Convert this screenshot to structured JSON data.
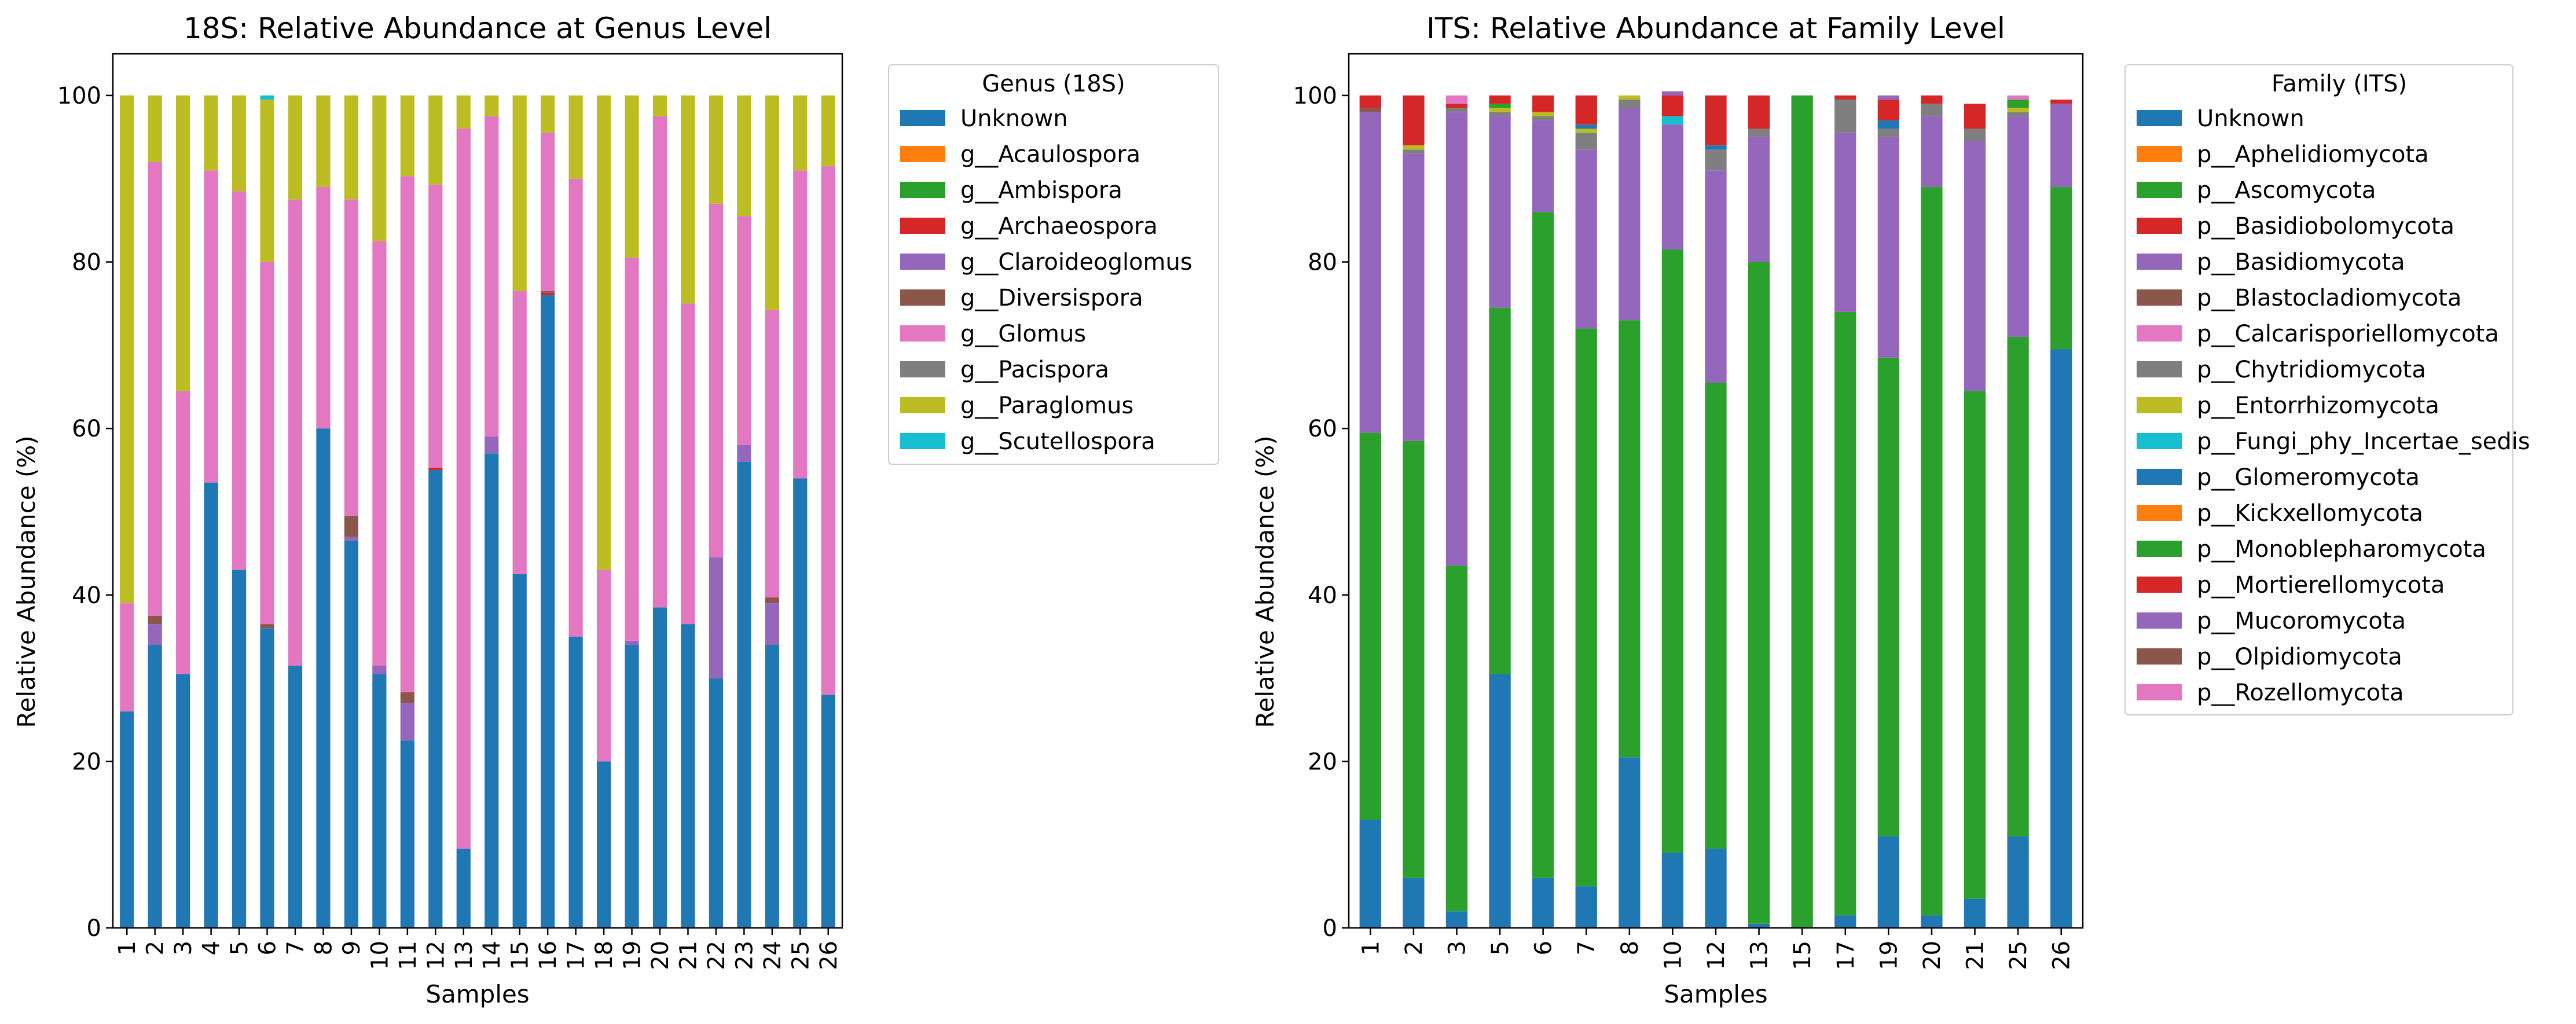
{
  "palette": {
    "Unknown": "#1f77b4",
    "g__Acaulospora": "#ff7f0e",
    "g__Ambispora": "#2ca02c",
    "g__Archaeospora": "#d62728",
    "g__Claroideoglomus": "#9467bd",
    "g__Diversispora": "#8c564b",
    "g__Glomus": "#e377c2",
    "g__Pacispora": "#7f7f7f",
    "g__Paraglomus": "#bcbd22",
    "g__Scutellospora": "#17becf",
    "p__Aphelidiomycota": "#ff7f0e",
    "p__Ascomycota": "#2ca02c",
    "p__Basidiobolomycota": "#d62728",
    "p__Basidiomycota": "#9467bd",
    "p__Blastocladiomycota": "#8c564b",
    "p__Calcarisporiellomycota": "#e377c2",
    "p__Chytridiomycota": "#7f7f7f",
    "p__Entorrhizomycota": "#bcbd22",
    "p__Fungi_phy_Incertae_sedis": "#17becf",
    "p__Glomeromycota": "#1f77b4",
    "p__Kickxellomycota": "#ff7f0e",
    "p__Monoblepharomycota": "#2ca02c",
    "p__Mortierellomycota": "#d62728",
    "p__Mucoromycota": "#9467bd",
    "p__Olpidiomycota": "#8c564b",
    "p__Rozellomycota": "#e377c2"
  },
  "chart_data": [
    {
      "type": "bar",
      "stacked": true,
      "title": "18S: Relative Abundance at Genus Level",
      "xlabel": "Samples",
      "ylabel": "Relative Abundance (%)",
      "ylim": [
        0,
        105
      ],
      "yticks": [
        "0",
        "20",
        "40",
        "60",
        "80",
        "100"
      ],
      "grid": false,
      "legend_title": "Genus (18S)",
      "legend_position": "outside upper right",
      "categories": [
        "1",
        "2",
        "3",
        "4",
        "5",
        "6",
        "7",
        "8",
        "9",
        "10",
        "11",
        "12",
        "13",
        "14",
        "15",
        "16",
        "17",
        "18",
        "19",
        "20",
        "21",
        "22",
        "23",
        "24",
        "25",
        "26"
      ],
      "series": [
        {
          "name": "Unknown",
          "values": [
            26,
            34,
            30.5,
            53.5,
            43,
            36,
            31.5,
            60,
            46.5,
            30.5,
            22.5,
            55,
            9.5,
            57,
            42.5,
            76,
            35,
            20,
            34,
            38.5,
            36.5,
            30,
            56,
            34,
            54,
            28
          ]
        },
        {
          "name": "g__Acaulospora",
          "values": [
            0,
            0,
            0,
            0,
            0,
            0,
            0,
            0,
            0,
            0,
            0,
            0,
            0,
            0,
            0,
            0,
            0,
            0,
            0,
            0,
            0,
            0,
            0,
            0,
            0,
            0
          ]
        },
        {
          "name": "g__Ambispora",
          "values": [
            0,
            0,
            0,
            0,
            0,
            0,
            0,
            0,
            0,
            0,
            0,
            0,
            0,
            0,
            0,
            0,
            0,
            0,
            0,
            0,
            0,
            0,
            0,
            0,
            0,
            0
          ]
        },
        {
          "name": "g__Archaeospora",
          "values": [
            0,
            0,
            0,
            0,
            0,
            0,
            0,
            0,
            0,
            0,
            0,
            0.3,
            0,
            0,
            0,
            0.3,
            0,
            0,
            0,
            0,
            0,
            0,
            0,
            0,
            0,
            0
          ]
        },
        {
          "name": "g__Claroideoglomus",
          "values": [
            0,
            2.5,
            0,
            0,
            0,
            0,
            0,
            0,
            0.5,
            1,
            4.5,
            0,
            0,
            2,
            0,
            0,
            0,
            0,
            0.5,
            0,
            0,
            14.5,
            2,
            5,
            0,
            0
          ]
        },
        {
          "name": "g__Diversispora",
          "values": [
            0,
            1,
            0,
            0,
            0,
            0.5,
            0,
            0,
            2.5,
            0,
            1.3,
            0,
            0,
            0,
            0,
            0.2,
            0,
            0,
            0,
            0,
            0,
            0,
            0,
            0.7,
            0,
            0
          ]
        },
        {
          "name": "g__Glomus",
          "values": [
            13,
            54.5,
            34,
            37.5,
            45.5,
            43.5,
            56,
            29,
            38,
            51,
            62,
            34,
            86.5,
            38.5,
            34,
            19,
            55,
            23,
            46,
            59,
            38.5,
            42.5,
            27.5,
            34.5,
            37,
            63.5
          ]
        },
        {
          "name": "g__Pacispora",
          "values": [
            0,
            0,
            0,
            0,
            0,
            0,
            0,
            0,
            0,
            0,
            0,
            0,
            0,
            0,
            0,
            0,
            0,
            0,
            0,
            0,
            0,
            0,
            0,
            0,
            0,
            0
          ]
        },
        {
          "name": "g__Paraglomus",
          "values": [
            61,
            8,
            35.5,
            9,
            11.5,
            19.5,
            12.5,
            11,
            12.5,
            17.5,
            9.7,
            10.7,
            4,
            2.5,
            23.5,
            4.5,
            10,
            57,
            19.5,
            2.5,
            25,
            13,
            14.5,
            25.8,
            9,
            8.5
          ]
        },
        {
          "name": "g__Scutellospora",
          "values": [
            0,
            0,
            0,
            0,
            0,
            0.5,
            0,
            0,
            0,
            0,
            0,
            0,
            0,
            0,
            0,
            0,
            0,
            0,
            0,
            0,
            0,
            0,
            0,
            0,
            0,
            0
          ]
        }
      ]
    },
    {
      "type": "bar",
      "stacked": true,
      "title": "ITS: Relative Abundance at Family Level",
      "xlabel": "Samples",
      "ylabel": "Relative Abundance (%)",
      "ylim": [
        0,
        105
      ],
      "yticks": [
        "0",
        "20",
        "40",
        "60",
        "80",
        "100"
      ],
      "grid": false,
      "legend_title": "Family (ITS)",
      "legend_position": "outside upper right",
      "categories": [
        "1",
        "2",
        "3",
        "5",
        "6",
        "7",
        "8",
        "10",
        "12",
        "13",
        "15",
        "17",
        "19",
        "20",
        "21",
        "25",
        "26"
      ],
      "series": [
        {
          "name": "Unknown",
          "values": [
            13,
            6,
            2,
            30.5,
            6,
            5,
            20.5,
            9,
            9.5,
            0.5,
            0,
            1.5,
            11,
            1.5,
            3.5,
            11,
            69.5
          ]
        },
        {
          "name": "p__Aphelidiomycota",
          "values": [
            0,
            0,
            0,
            0,
            0,
            0,
            0,
            0,
            0,
            0,
            0,
            0,
            0,
            0,
            0,
            0,
            0
          ]
        },
        {
          "name": "p__Ascomycota",
          "values": [
            46.5,
            52.5,
            41.5,
            44,
            80,
            67,
            52.5,
            72.5,
            56,
            79.5,
            100,
            72.5,
            57.5,
            87.5,
            61,
            60,
            19.5
          ]
        },
        {
          "name": "p__Basidiobolomycota",
          "values": [
            0,
            0,
            0,
            0,
            0,
            0,
            0,
            0,
            0,
            0,
            0,
            0,
            0,
            0,
            0,
            0,
            0
          ]
        },
        {
          "name": "p__Basidiomycota",
          "values": [
            38.5,
            34.5,
            54.5,
            23,
            11,
            21.5,
            25.5,
            15,
            25.5,
            15,
            0,
            21.5,
            26.5,
            8.5,
            30,
            26.5,
            10
          ]
        },
        {
          "name": "p__Blastocladiomycota",
          "values": [
            0.5,
            0,
            0,
            0,
            0,
            0,
            0,
            0,
            0,
            0,
            0,
            0,
            0,
            0,
            0,
            0,
            0
          ]
        },
        {
          "name": "p__Calcarisporiellomycota",
          "values": [
            0,
            0,
            0,
            0,
            0,
            0,
            0,
            0,
            0,
            0,
            0,
            0,
            0,
            0,
            0,
            0,
            0
          ]
        },
        {
          "name": "p__Chytridiomycota",
          "values": [
            0,
            0.5,
            0.5,
            0.5,
            0.5,
            2,
            1,
            0,
            2.5,
            1,
            0,
            4,
            1,
            1.5,
            1.5,
            0.5,
            0
          ]
        },
        {
          "name": "p__Entorrhizomycota",
          "values": [
            0,
            0.5,
            0,
            0.5,
            0.5,
            0.5,
            0.5,
            0,
            0,
            0,
            0,
            0,
            0,
            0,
            0,
            0.5,
            0
          ]
        },
        {
          "name": "p__Fungi_phy_Incertae_sedis",
          "values": [
            0,
            0,
            0,
            0,
            0,
            0,
            0,
            1,
            0,
            0,
            0,
            0,
            0,
            0,
            0,
            0,
            0
          ]
        },
        {
          "name": "p__Glomeromycota",
          "values": [
            0,
            0,
            0,
            0,
            0,
            0.5,
            0,
            0,
            0.5,
            0,
            0,
            0,
            1,
            0,
            0,
            0,
            0
          ]
        },
        {
          "name": "p__Kickxellomycota",
          "values": [
            0,
            0,
            0,
            0,
            0,
            0,
            0,
            0,
            0,
            0,
            0,
            0,
            0,
            0,
            0,
            0,
            0
          ]
        },
        {
          "name": "p__Monoblepharomycota",
          "values": [
            0,
            0,
            0,
            0.5,
            0,
            0,
            0,
            0,
            0,
            0,
            0,
            0,
            0,
            0,
            0,
            1,
            0
          ]
        },
        {
          "name": "p__Mortierellomycota",
          "values": [
            1.5,
            6,
            0.5,
            1,
            2,
            3.5,
            0,
            2.5,
            6,
            4,
            0,
            0.5,
            2.5,
            1,
            3,
            0,
            0.5
          ]
        },
        {
          "name": "p__Mucoromycota",
          "values": [
            0,
            0,
            0,
            0,
            0,
            0,
            0,
            0.5,
            0,
            0,
            0,
            0,
            0.5,
            0,
            0,
            0,
            0
          ]
        },
        {
          "name": "p__Olpidiomycota",
          "values": [
            0,
            0,
            0,
            0,
            0,
            0,
            0,
            0,
            0,
            0,
            0,
            0,
            0,
            0,
            0,
            0,
            0
          ]
        },
        {
          "name": "p__Rozellomycota",
          "values": [
            0,
            0,
            1,
            0,
            0,
            0,
            0,
            0,
            0,
            0,
            0,
            0,
            0,
            0,
            0,
            0.5,
            0
          ]
        }
      ]
    }
  ]
}
